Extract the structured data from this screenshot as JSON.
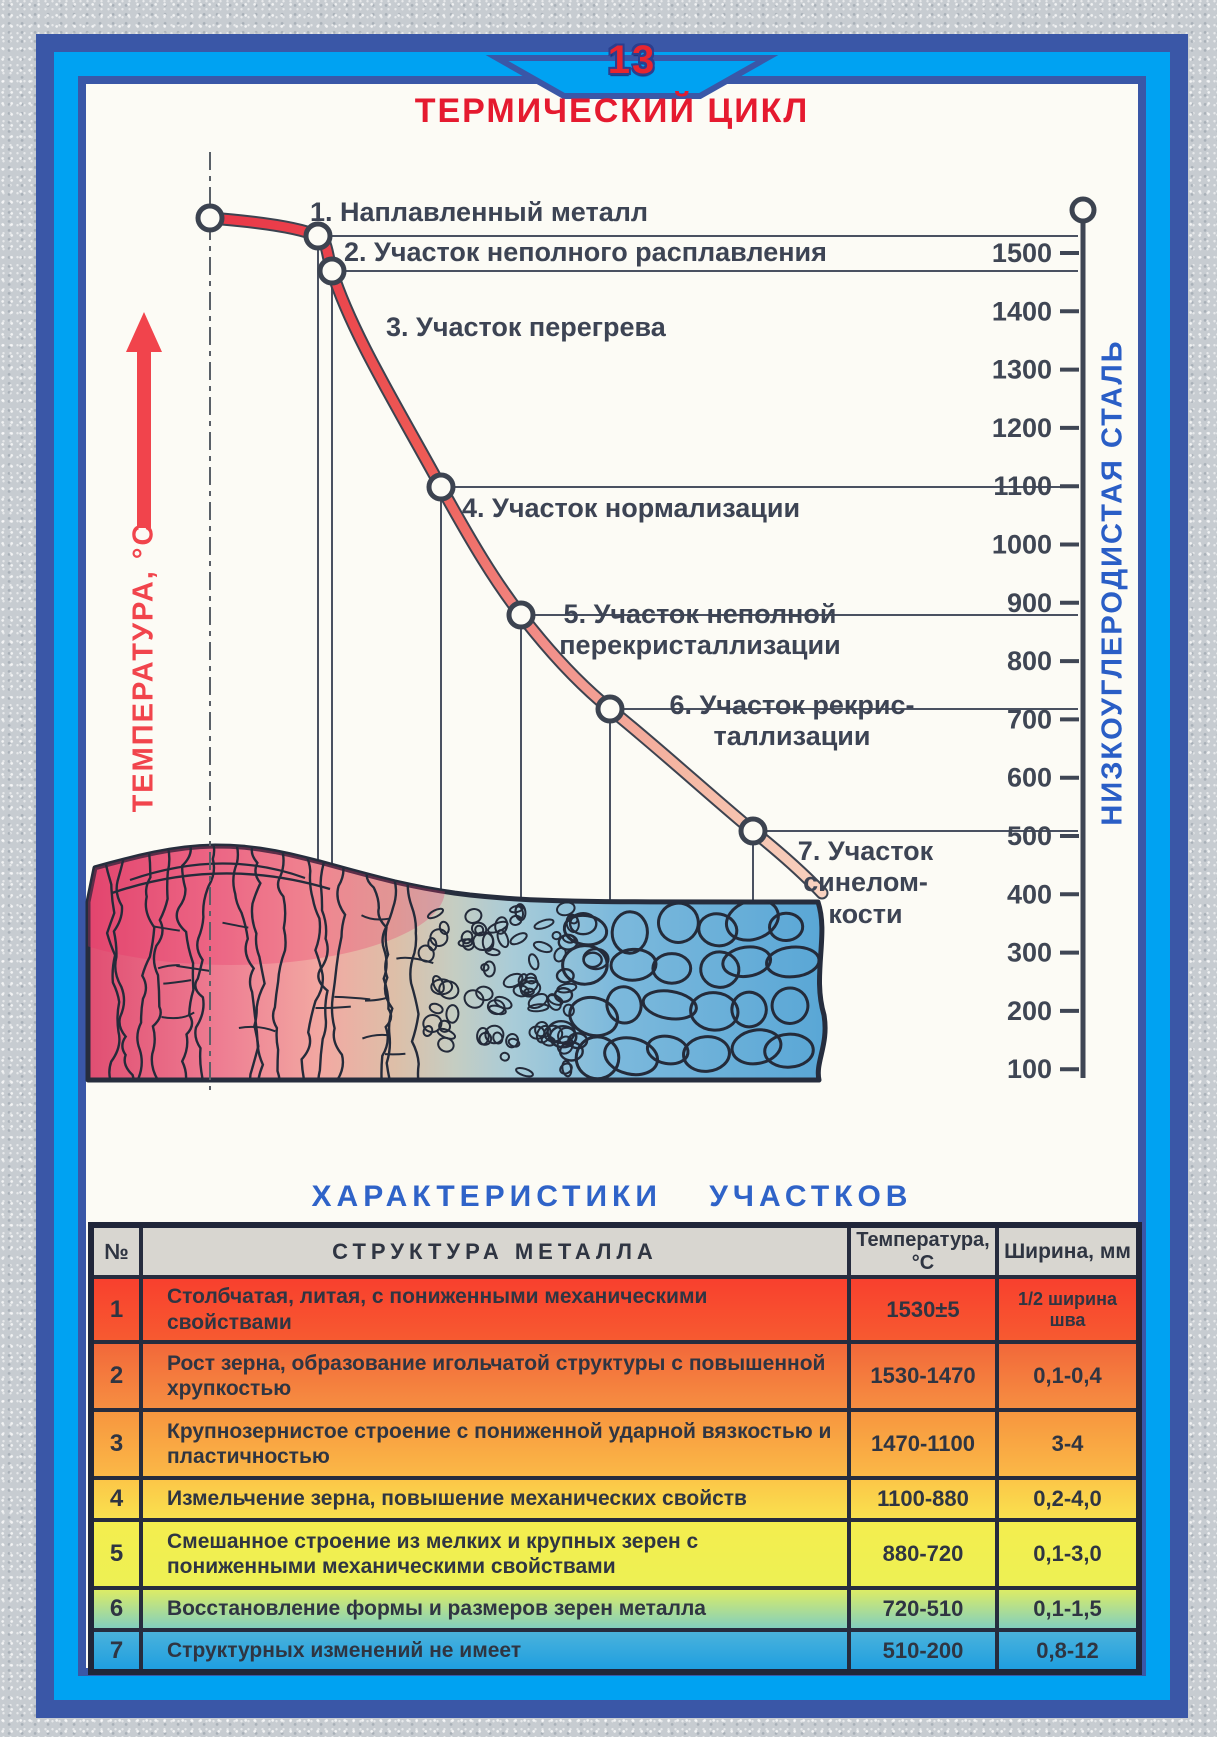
{
  "page": {
    "number": "13"
  },
  "title": "ТЕРМИЧЕСКИЙ ЦИКЛ",
  "chart": {
    "temperature_axis_label": "ТЕМПЕРАТУРА, °С",
    "steel_label": "НИЗКОУГЛЕРОДИСТАЯ СТАЛЬ",
    "axis_ticks": [
      "1500",
      "1400",
      "1300",
      "1200",
      "1100",
      "1000",
      "900",
      "800",
      "700",
      "600",
      "500",
      "400",
      "300",
      "200",
      "100"
    ],
    "zones": [
      {
        "label": "1. Наплавленный металл"
      },
      {
        "label": "2. Участок неполного расплавления"
      },
      {
        "label": "3. Участок перегрева"
      },
      {
        "label": "4. Участок нормализации"
      },
      {
        "label": "5. Участок неполной\nперекристаллизации"
      },
      {
        "label": "6. Участок рекрис-\nталлизации"
      },
      {
        "label": "7. Участок\nсинелом-\nкости"
      }
    ]
  },
  "chart_data": {
    "type": "line",
    "title": "ТЕРМИЧЕСКИЙ ЦИКЛ",
    "ylabel": "ТЕМПЕРАТУРА, °С",
    "y_axis_side": "right",
    "ylim": [
      100,
      1500
    ],
    "yticks": [
      1500,
      1400,
      1300,
      1200,
      1100,
      1000,
      900,
      800,
      700,
      600,
      500,
      400,
      300,
      200,
      100
    ],
    "grid": false,
    "series": [
      {
        "name": "Термический цикл сварки низкоуглеродистой стали",
        "points": [
          {
            "zone": "1",
            "temp": 1560
          },
          {
            "zone": "2",
            "temp": 1530
          },
          {
            "zone": "3",
            "temp": 1470
          },
          {
            "zone": "4",
            "temp": 1100
          },
          {
            "zone": "5",
            "temp": 880
          },
          {
            "zone": "6",
            "temp": 720
          },
          {
            "zone": "7",
            "temp": 510
          }
        ]
      }
    ]
  },
  "table": {
    "section_title": "ХАРАКТЕРИСТИКИ УЧАСТКОВ",
    "headers": {
      "num": "№",
      "structure": "СТРУКТУРА МЕТАЛЛА",
      "temperature": "Температура,\n°С",
      "width": "Ширина, мм"
    },
    "rows": [
      {
        "num": "1",
        "structure": "Столбчатая, литая, с пониженными механическими свойствами",
        "temperature": "1530±5",
        "width": "1/2 ширина шва",
        "color_top": "#f8402e",
        "color_bottom": "#f75a30"
      },
      {
        "num": "2",
        "structure": "Рост зерна, образование игольчатой структуры с повышенной хрупкостью",
        "temperature": "1530-1470",
        "width": "0,1-0,4",
        "color_top": "#f2683a",
        "color_bottom": "#f68e41"
      },
      {
        "num": "3",
        "structure": "Крупнозернистое строение с пониженной ударной вязкостью и пластичностью",
        "temperature": "1470-1100",
        "width": "3-4",
        "color_top": "#f7963f",
        "color_bottom": "#fbb847"
      },
      {
        "num": "4",
        "structure": "Измельчение  зерна, повышение механических свойств",
        "temperature": "1100-880",
        "width": "0,2-4,0",
        "color_top": "#fcc648",
        "color_bottom": "#f9e14e"
      },
      {
        "num": "5",
        "structure": "Смешанное строение из мелких и крупных зерен с пониженными механическими свойствами",
        "temperature": "880-720",
        "width": "0,1-3,0",
        "color_top": "#f4ee4e",
        "color_bottom": "#edf054"
      },
      {
        "num": "6",
        "structure": "Восстановление формы и размеров зерен металла",
        "temperature": "720-510",
        "width": "0,1-1,5",
        "color_top": "#dcec66",
        "color_bottom": "#82cfbe"
      },
      {
        "num": "7",
        "structure": "Структурных изменений не имеет",
        "temperature": "510-200",
        "width": "0,8-12",
        "color_top": "#4ab2dc",
        "color_bottom": "#1f9fe0"
      }
    ]
  },
  "colors": {
    "frame_navy": "#3a57a7",
    "frame_bright_blue": "#00a2f2",
    "title_red": "#e51a2f",
    "temperature_label_red": "#f1444c",
    "steel_label_blue": "#2a5ec6",
    "section_title_blue": "#2f63c8",
    "chart_text_dark": "#3d4454",
    "curve_hot": "#e93848",
    "curve_cool": "#f8d2c0"
  }
}
